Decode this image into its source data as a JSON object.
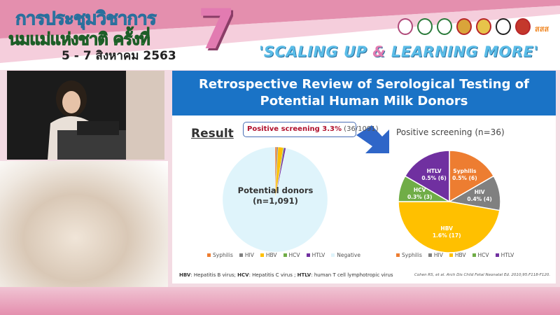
{
  "banner": {
    "title_line1": "การประชุมวิชาการ",
    "title_line2": "นมแม่แห่งชาติ ครั้งที่",
    "dates": "5 - 7 สิงหาคม 2563",
    "edition": "7",
    "slogan_a": "'SCALING UP ",
    "slogan_amp": "&",
    "slogan_b": " LEARNING MORE'",
    "logos": [
      "Thai Breastfeeding Center",
      "Department of Health",
      "Ministry of Public Health",
      "Royal College",
      "Royal College 2",
      "Foundation",
      "Thai Red Cross",
      "สสส"
    ]
  },
  "slide": {
    "title_line1": "Retrospective Review of Serological Testing of",
    "title_line2": "Potential Human Milk Donors",
    "result_heading": "Result",
    "callout_bold": "Positive screening 3.3%",
    "callout_rest": " (36/1091)",
    "donors_label": "Potential donors",
    "donors_n": "(n=1,091)",
    "arrow_color": "#2f66c8",
    "footnote": [
      {
        "b": "HBV",
        "t": ": Hepatitis B virus; "
      },
      {
        "b": "HCV",
        "t": ": Hepatitis C virus ; "
      },
      {
        "b": "HTLV",
        "t": ": human T cell lymphotropic virus"
      }
    ],
    "citation": "Cohen RS, et al. Arch Dis Child Fetal Neonatal Ed. 2010;95:F118-F120."
  },
  "chart_data": [
    {
      "type": "pie",
      "title": "",
      "legend_position": "bottom",
      "legend": [
        "Syphilis",
        "HIV",
        "HBV",
        "HCV",
        "HTLV",
        "Negative"
      ],
      "values": [
        6,
        4,
        17,
        3,
        6,
        1055
      ],
      "colors": [
        "#ed7d31",
        "#808080",
        "#ffc000",
        "#70ad47",
        "#7030a0",
        "#dff4fb"
      ]
    },
    {
      "type": "pie",
      "title": "Positive screening (n=36)",
      "legend_position": "bottom",
      "legend": [
        "Syphilis",
        "HIV",
        "HBV",
        "HCV",
        "HTLV"
      ],
      "values": [
        6,
        4,
        17,
        3,
        6
      ],
      "labels": [
        "0.5% (6)",
        "0.4% (4)",
        "1.6% (17)",
        "0.3% (3)",
        "0.5% (6)"
      ],
      "colors": [
        "#ed7d31",
        "#808080",
        "#ffc000",
        "#70ad47",
        "#7030a0"
      ]
    }
  ]
}
